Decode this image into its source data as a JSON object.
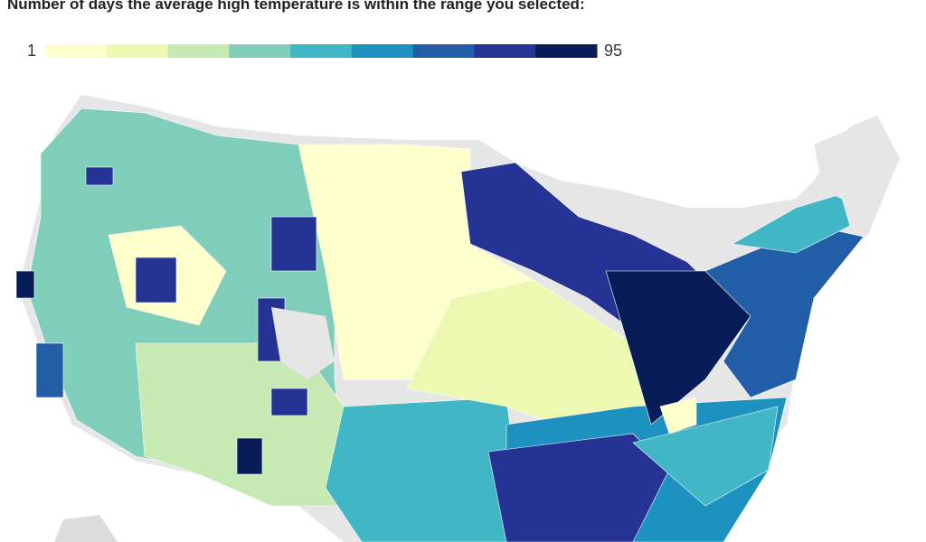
{
  "header": {
    "title": "Number of days the average high temperature is within the range you selected:"
  },
  "legend": {
    "min": 1,
    "max": 95,
    "colors": [
      "#ffffcc",
      "#edf8b1",
      "#c7e9b4",
      "#7fcdbb",
      "#41b6c4",
      "#1d91c0",
      "#225ea8",
      "#253494",
      "#081d58"
    ]
  }
}
